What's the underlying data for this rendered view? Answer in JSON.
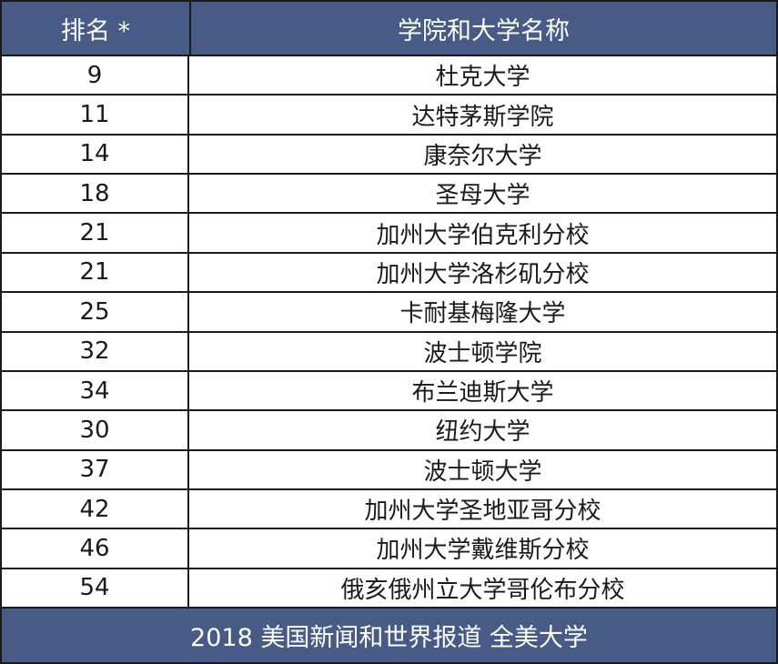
{
  "header": {
    "rank": "排名 *",
    "name": "学院和大学名称"
  },
  "rows": [
    {
      "rank": "9",
      "name": "杜克大学"
    },
    {
      "rank": "11",
      "name": "达特茅斯学院"
    },
    {
      "rank": "14",
      "name": "康奈尔大学"
    },
    {
      "rank": "18",
      "name": "圣母大学"
    },
    {
      "rank": "21",
      "name": "加州大学伯克利分校"
    },
    {
      "rank": "21",
      "name": "加州大学洛杉矶分校"
    },
    {
      "rank": "25",
      "name": "卡耐基梅隆大学"
    },
    {
      "rank": "32",
      "name": "波士顿学院"
    },
    {
      "rank": "34",
      "name": "布兰迪斯大学"
    },
    {
      "rank": "30",
      "name": "纽约大学"
    },
    {
      "rank": "37",
      "name": "波士顿大学"
    },
    {
      "rank": "42",
      "name": "加州大学圣地亚哥分校"
    },
    {
      "rank": "46",
      "name": "加州大学戴维斯分校"
    },
    {
      "rank": "54",
      "name": "俄亥俄州立大学哥伦布分校"
    }
  ],
  "footer": "2018 美国新闻和世界报道 全美大学",
  "colors": {
    "header_bg": "#475b86",
    "header_text": "#ffffff",
    "border": "#1a1a1a"
  }
}
